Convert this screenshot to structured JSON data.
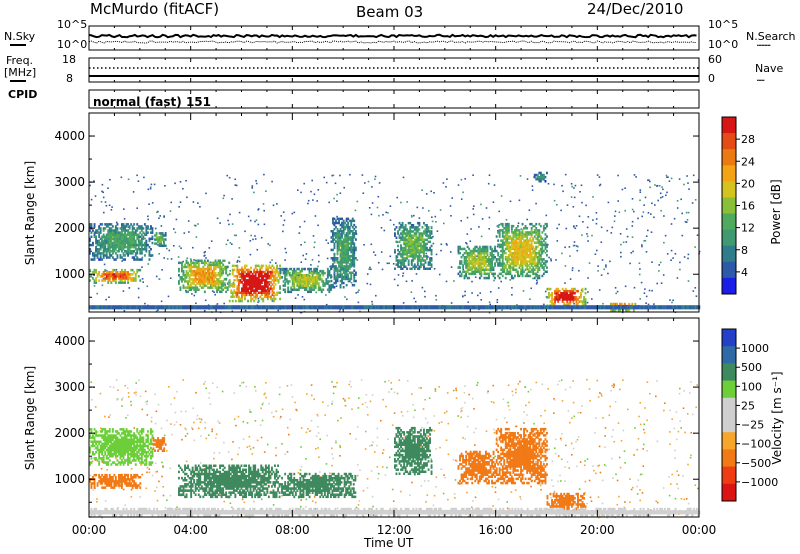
{
  "header": {
    "title": "McMurdo (fitACF)",
    "beam": "Beam 03",
    "date": "24/Dec/2010"
  },
  "noise_panel": {
    "left_label": "N.Sky",
    "right_label": "N.Search",
    "right_legend_dots": "·········",
    "left_ticks": [
      "10^5",
      "10^0"
    ],
    "right_ticks": [
      "10^5",
      "10^0"
    ]
  },
  "freq_panel": {
    "left_label_1": "Freq.",
    "left_label_2": "[MHz]",
    "right_label": "Nave",
    "right_legend_dots": "·····",
    "left_ticks": [
      "18",
      "8"
    ],
    "right_ticks": [
      "60",
      "0"
    ]
  },
  "cpid_panel": {
    "label": "CPID",
    "value": "normal (fast) 151"
  },
  "time_axis": {
    "tick_labels": [
      "00:00",
      "04:00",
      "08:00",
      "12:00",
      "16:00",
      "20:00",
      "00:00"
    ],
    "title": "Time UT"
  },
  "colors": {
    "power_scale": [
      "#1a1ee6",
      "#2e58a8",
      "#2f7d8a",
      "#3f9a72",
      "#4faa5e",
      "#89c038",
      "#d4c21e",
      "#f2a316",
      "#ec7a12",
      "#e54b14",
      "#d71616"
    ],
    "velocity_scale": [
      "#dc1414",
      "#ee3c14",
      "#f27a16",
      "#f6a62a",
      "#cfcfcf",
      "#cfcfcf",
      "#6ccf3a",
      "#3e8a5e",
      "#2f6aa6",
      "#2440c8"
    ]
  },
  "chart_data": [
    {
      "type": "heatmap",
      "name": "power",
      "ylabel": "Slant Range [km]",
      "ylim": [
        180,
        4500
      ],
      "yticks": [
        "1000",
        "2000",
        "3000",
        "4000"
      ],
      "xlim_hours": [
        0,
        24
      ],
      "colorbar": {
        "title": "Power [dB]",
        "range": [
          0,
          32
        ],
        "tick_labels": [
          "4",
          "8",
          "12",
          "16",
          "20",
          "24",
          "28"
        ]
      },
      "features": [
        {
          "time_start": "00:00",
          "time_end": "02:00",
          "range_km": [
            800,
            1100
          ],
          "value": 20
        },
        {
          "time_start": "00:00",
          "time_end": "02:30",
          "range_km": [
            1300,
            2100
          ],
          "value": 8
        },
        {
          "time_start": "02:30",
          "time_end": "03:00",
          "range_km": [
            1600,
            1900
          ],
          "value": 10
        },
        {
          "time_start": "03:30",
          "time_end": "05:30",
          "range_km": [
            600,
            1300
          ],
          "value": 16
        },
        {
          "time_start": "05:30",
          "time_end": "07:30",
          "range_km": [
            400,
            1200
          ],
          "value": 26
        },
        {
          "time_start": "07:30",
          "time_end": "09:30",
          "range_km": [
            600,
            1100
          ],
          "value": 12
        },
        {
          "time_start": "09:30",
          "time_end": "10:30",
          "range_km": [
            700,
            2200
          ],
          "value": 8
        },
        {
          "time_start": "12:00",
          "time_end": "13:30",
          "range_km": [
            1100,
            2100
          ],
          "value": 10
        },
        {
          "time_start": "14:30",
          "time_end": "16:00",
          "range_km": [
            900,
            1600
          ],
          "value": 12
        },
        {
          "time_start": "16:00",
          "time_end": "18:00",
          "range_km": [
            900,
            2100
          ],
          "value": 14
        },
        {
          "time_start": "17:30",
          "time_end": "18:00",
          "range_km": [
            3000,
            3200
          ],
          "value": 6
        },
        {
          "time_start": "18:00",
          "time_end": "19:30",
          "range_km": [
            300,
            700
          ],
          "value": 24
        },
        {
          "time_start": "20:30",
          "time_end": "21:30",
          "range_km": [
            200,
            350
          ],
          "value": 28
        }
      ]
    },
    {
      "type": "heatmap",
      "name": "velocity",
      "ylabel": "Slant Range [km]",
      "ylim": [
        180,
        4500
      ],
      "yticks": [
        "1000",
        "2000",
        "3000",
        "4000"
      ],
      "xlim_hours": [
        0,
        24
      ],
      "colorbar": {
        "title": "Velocity [m s⁻¹]",
        "range": [
          -1500,
          1500
        ],
        "tick_labels": [
          "1000",
          "500",
          "100",
          "25",
          "−25",
          "−100",
          "−500",
          "−1000"
        ]
      },
      "features": [
        {
          "time_start": "00:00",
          "time_end": "02:00",
          "range_km": [
            800,
            1100
          ],
          "value": -200
        },
        {
          "time_start": "00:00",
          "time_end": "02:30",
          "range_km": [
            1300,
            2100
          ],
          "value": 60
        },
        {
          "time_start": "02:30",
          "time_end": "03:00",
          "range_km": [
            1600,
            1900
          ],
          "value": -150
        },
        {
          "time_start": "03:30",
          "time_end": "07:30",
          "range_km": [
            600,
            1300
          ],
          "value": 250
        },
        {
          "time_start": "07:30",
          "time_end": "10:30",
          "range_km": [
            600,
            1100
          ],
          "value": 250
        },
        {
          "time_start": "12:00",
          "time_end": "13:30",
          "range_km": [
            1100,
            2100
          ],
          "value": 250
        },
        {
          "time_start": "14:30",
          "time_end": "16:00",
          "range_km": [
            900,
            1600
          ],
          "value": -200
        },
        {
          "time_start": "16:00",
          "time_end": "18:00",
          "range_km": [
            900,
            2100
          ],
          "value": -200
        },
        {
          "time_start": "18:00",
          "time_end": "19:30",
          "range_km": [
            300,
            700
          ],
          "value": -200
        },
        {
          "time_start": "00:00",
          "time_end": "24:00",
          "range_km": [
            200,
            350
          ],
          "value": 0
        }
      ]
    }
  ]
}
